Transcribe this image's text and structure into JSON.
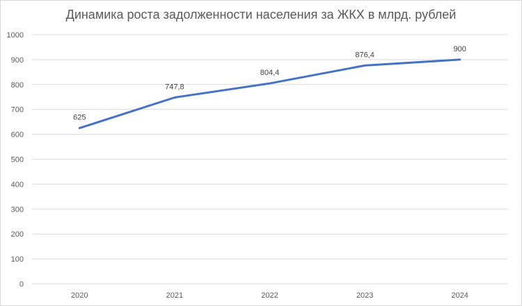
{
  "chart_data": {
    "type": "line",
    "title": "Динамика роста задолженности населения за ЖКХ в млрд. рублей",
    "xlabel": "",
    "ylabel": "",
    "categories": [
      "2020",
      "2021",
      "2022",
      "2023",
      "2024"
    ],
    "series": [
      {
        "values": [
          625,
          747.8,
          804.4,
          876.4,
          900
        ],
        "data_labels": [
          "625",
          "747,8",
          "804,4",
          "876,4",
          "900"
        ],
        "color": "#4472c4"
      }
    ],
    "ylim": [
      0,
      1000
    ],
    "yticks": [
      "0",
      "100",
      "200",
      "300",
      "400",
      "500",
      "600",
      "700",
      "800",
      "900",
      "1000"
    ],
    "grid": true,
    "legend": "none"
  }
}
